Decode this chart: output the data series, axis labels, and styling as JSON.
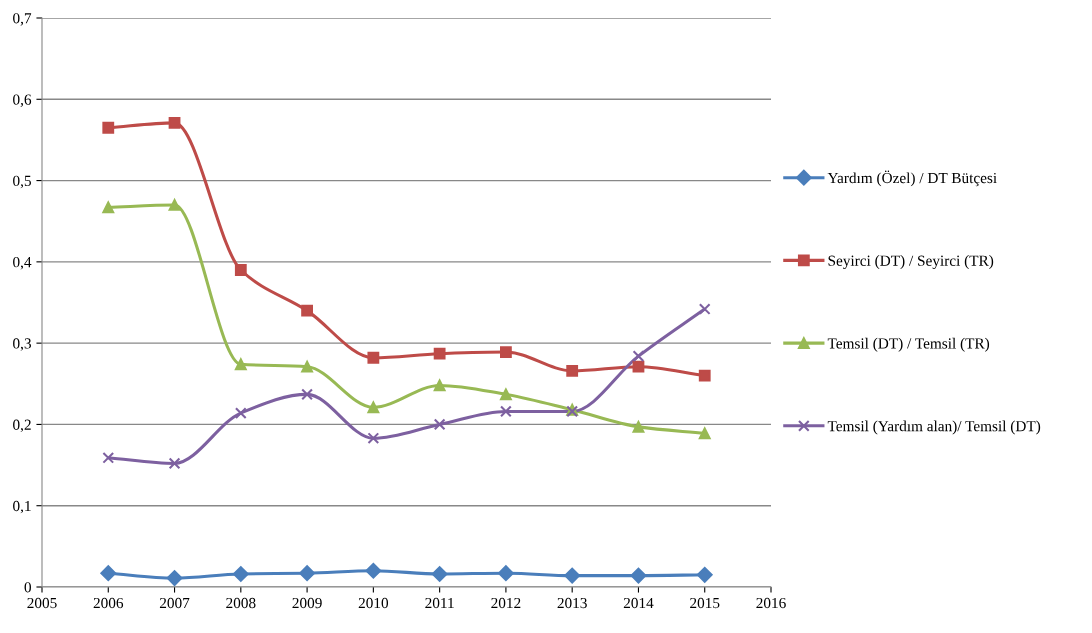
{
  "chart_data": {
    "type": "line",
    "x": [
      2006,
      2007,
      2008,
      2009,
      2010,
      2011,
      2012,
      2013,
      2014,
      2015
    ],
    "series": [
      {
        "name": "Yardım (Özel) / DT Bütçesi",
        "color": "#4a7ebb",
        "marker": "diamond",
        "values": [
          0.017,
          0.011,
          0.016,
          0.017,
          0.02,
          0.016,
          0.017,
          0.014,
          0.014,
          0.015
        ]
      },
      {
        "name": "Seyirci (DT) / Seyirci (TR)",
        "color": "#be4b48",
        "marker": "square",
        "values": [
          0.565,
          0.571,
          0.39,
          0.34,
          0.282,
          0.287,
          0.289,
          0.266,
          0.271,
          0.26
        ]
      },
      {
        "name": "Temsil (DT) / Temsil (TR)",
        "color": "#98b954",
        "marker": "triangle",
        "values": [
          0.467,
          0.47,
          0.274,
          0.271,
          0.221,
          0.248,
          0.237,
          0.218,
          0.197,
          0.189
        ]
      },
      {
        "name": "Temsil (Yardım alan)/ Temsil (DT)",
        "color": "#7d60a0",
        "marker": "cross",
        "values": [
          0.159,
          0.152,
          0.214,
          0.237,
          0.183,
          0.2,
          0.216,
          0.216,
          0.284,
          0.342
        ]
      }
    ],
    "xlim": [
      2005,
      2016
    ],
    "xticks": [
      2005,
      2006,
      2007,
      2008,
      2009,
      2010,
      2011,
      2012,
      2013,
      2014,
      2015,
      2016
    ],
    "ylim": [
      0,
      0.7
    ],
    "yticks": [
      0,
      {
        "value": 0.1,
        "label": "0,1"
      },
      {
        "value": 0.2,
        "label": "0,2"
      },
      {
        "value": 0.3,
        "label": "0,3"
      },
      {
        "value": 0.4,
        "label": "0,4"
      },
      {
        "value": 0.5,
        "label": "0,5"
      },
      {
        "value": 0.6,
        "label": "0,6"
      },
      {
        "value": 0.7,
        "label": "0,7"
      }
    ],
    "grid": "y",
    "legend": "right",
    "line_style": "solid"
  }
}
